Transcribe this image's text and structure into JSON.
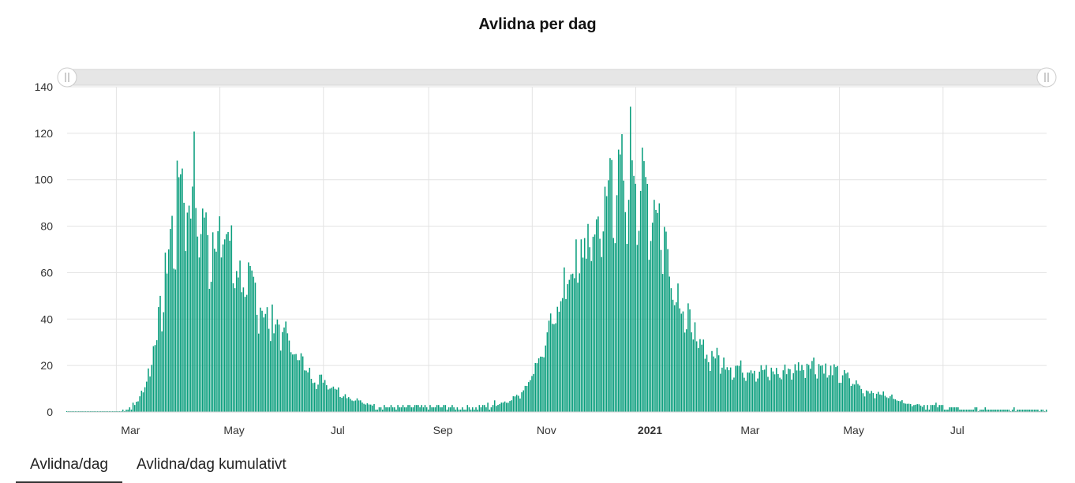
{
  "chart_data": {
    "type": "bar",
    "title": "Avlidna per dag",
    "x_range": [
      "2020-02-01",
      "2021-08-31"
    ],
    "ylim": [
      0,
      140
    ],
    "y_ticks": [
      0,
      20,
      40,
      60,
      80,
      100,
      120,
      140
    ],
    "x_ticks": [
      {
        "label": "Mar",
        "date": "2020-03-01",
        "bold": false
      },
      {
        "label": "May",
        "date": "2020-05-01",
        "bold": false
      },
      {
        "label": "Jul",
        "date": "2020-07-01",
        "bold": false
      },
      {
        "label": "Sep",
        "date": "2020-09-01",
        "bold": false
      },
      {
        "label": "Nov",
        "date": "2020-11-01",
        "bold": false
      },
      {
        "label": "2021",
        "date": "2021-01-01",
        "bold": true
      },
      {
        "label": "Mar",
        "date": "2021-03-01",
        "bold": false
      },
      {
        "label": "May",
        "date": "2021-05-01",
        "bold": false
      },
      {
        "label": "Jul",
        "date": "2021-07-01",
        "bold": false
      }
    ],
    "series": [
      {
        "color": "#0a9e7d",
        "points": [
          [
            "2020-02-01",
            0
          ],
          [
            "2020-03-01",
            0
          ],
          [
            "2020-03-08",
            1
          ],
          [
            "2020-03-12",
            3
          ],
          [
            "2020-03-15",
            8
          ],
          [
            "2020-03-18",
            11
          ],
          [
            "2020-03-21",
            22
          ],
          [
            "2020-03-24",
            33
          ],
          [
            "2020-03-27",
            45
          ],
          [
            "2020-03-30",
            62
          ],
          [
            "2020-04-02",
            80
          ],
          [
            "2020-04-05",
            88
          ],
          [
            "2020-04-08",
            115
          ],
          [
            "2020-04-10",
            98
          ],
          [
            "2020-04-12",
            102
          ],
          [
            "2020-04-14",
            90
          ],
          [
            "2020-04-15",
            115
          ],
          [
            "2020-04-16",
            110
          ],
          [
            "2020-04-18",
            87
          ],
          [
            "2020-04-20",
            86
          ],
          [
            "2020-04-22",
            89
          ],
          [
            "2020-04-24",
            75
          ],
          [
            "2020-04-28",
            83
          ],
          [
            "2020-05-02",
            82
          ],
          [
            "2020-05-06",
            80
          ],
          [
            "2020-05-10",
            70
          ],
          [
            "2020-05-14",
            60
          ],
          [
            "2020-05-18",
            58
          ],
          [
            "2020-05-22",
            55
          ],
          [
            "2020-05-26",
            47
          ],
          [
            "2020-05-30",
            43
          ],
          [
            "2020-06-04",
            40
          ],
          [
            "2020-06-08",
            38
          ],
          [
            "2020-06-12",
            30
          ],
          [
            "2020-06-16",
            27
          ],
          [
            "2020-06-20",
            22
          ],
          [
            "2020-06-25",
            15
          ],
          [
            "2020-06-30",
            15
          ],
          [
            "2020-07-05",
            13
          ],
          [
            "2020-07-10",
            10
          ],
          [
            "2020-07-15",
            7
          ],
          [
            "2020-07-20",
            6
          ],
          [
            "2020-07-25",
            4
          ],
          [
            "2020-08-01",
            3
          ],
          [
            "2020-08-10",
            2
          ],
          [
            "2020-08-20",
            2
          ],
          [
            "2020-09-01",
            2
          ],
          [
            "2020-09-15",
            2
          ],
          [
            "2020-10-01",
            2
          ],
          [
            "2020-10-10",
            3
          ],
          [
            "2020-10-20",
            6
          ],
          [
            "2020-10-26",
            9
          ],
          [
            "2020-11-01",
            18
          ],
          [
            "2020-11-05",
            25
          ],
          [
            "2020-11-10",
            34
          ],
          [
            "2020-11-15",
            45
          ],
          [
            "2020-11-20",
            60
          ],
          [
            "2020-11-25",
            65
          ],
          [
            "2020-11-30",
            72
          ],
          [
            "2020-12-05",
            80
          ],
          [
            "2020-12-10",
            85
          ],
          [
            "2020-12-15",
            95
          ],
          [
            "2020-12-18",
            116
          ],
          [
            "2020-12-21",
            100
          ],
          [
            "2020-12-24",
            109
          ],
          [
            "2020-12-27",
            95
          ],
          [
            "2020-12-29",
            121
          ],
          [
            "2021-01-01",
            110
          ],
          [
            "2021-01-04",
            103
          ],
          [
            "2021-01-08",
            100
          ],
          [
            "2021-01-11",
            94
          ],
          [
            "2021-01-14",
            96
          ],
          [
            "2021-01-18",
            80
          ],
          [
            "2021-01-22",
            65
          ],
          [
            "2021-01-26",
            55
          ],
          [
            "2021-01-30",
            45
          ],
          [
            "2021-02-04",
            38
          ],
          [
            "2021-02-08",
            30
          ],
          [
            "2021-02-12",
            27
          ],
          [
            "2021-02-18",
            25
          ],
          [
            "2021-02-25",
            21
          ],
          [
            "2021-03-05",
            20
          ],
          [
            "2021-03-15",
            19
          ],
          [
            "2021-03-25",
            18
          ],
          [
            "2021-04-05",
            20
          ],
          [
            "2021-04-15",
            23
          ],
          [
            "2021-04-22",
            20
          ],
          [
            "2021-04-30",
            18
          ],
          [
            "2021-05-08",
            15
          ],
          [
            "2021-05-15",
            10
          ],
          [
            "2021-05-22",
            9
          ],
          [
            "2021-06-01",
            7
          ],
          [
            "2021-06-10",
            4
          ],
          [
            "2021-06-20",
            3
          ],
          [
            "2021-07-01",
            2
          ],
          [
            "2021-07-15",
            1
          ],
          [
            "2021-08-01",
            1
          ],
          [
            "2021-08-20",
            1
          ],
          [
            "2021-08-31",
            1
          ]
        ]
      }
    ],
    "grid": true,
    "legend": "none"
  },
  "scrollbar": {
    "track_color": "#e6e6e6"
  },
  "tabs": [
    {
      "label": "Avlidna/dag",
      "active": true
    },
    {
      "label": "Avlidna/dag kumulativt",
      "active": false
    }
  ]
}
